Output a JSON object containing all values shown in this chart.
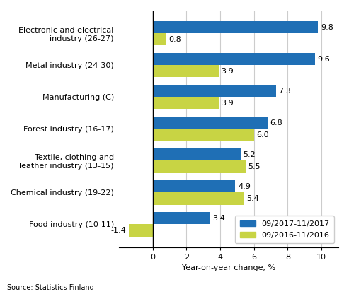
{
  "categories": [
    "Electronic and electrical\nindustry (26-27)",
    "Metal industry (24-30)",
    "Manufacturing (C)",
    "Forest industry (16-17)",
    "Textile, clothing and\nleather industry (13-15)",
    "Chemical industry (19-22)",
    "Food industry (10-11)"
  ],
  "values_2017": [
    9.8,
    9.6,
    7.3,
    6.8,
    5.2,
    4.9,
    3.4
  ],
  "values_2016": [
    0.8,
    3.9,
    3.9,
    6.0,
    5.5,
    5.4,
    -1.4
  ],
  "color_2017": "#1f6fb5",
  "color_2016": "#c8d444",
  "bar_height": 0.38,
  "xlim": [
    -2,
    11
  ],
  "xticks": [
    0,
    2,
    4,
    6,
    8,
    10
  ],
  "xlabel": "Year-on-year change, %",
  "legend_labels": [
    "09/2017-11/2017",
    "09/2016-11/2016"
  ],
  "source": "Source: Statistics Finland",
  "label_fontsize": 8,
  "tick_fontsize": 8
}
